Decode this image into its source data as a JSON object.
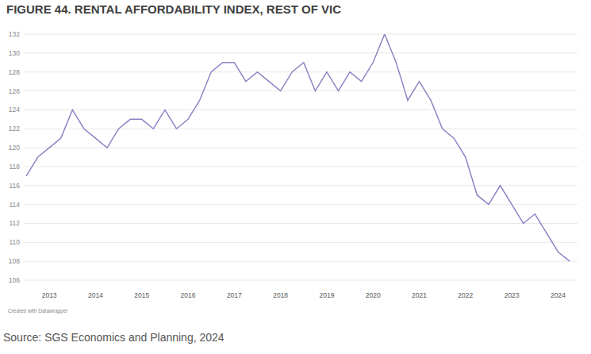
{
  "chart_data": {
    "type": "line",
    "title": "FIGURE 44. RENTAL AFFORDABILITY INDEX, REST OF VIC",
    "credit": "Created with Datawrapper",
    "source": "Source: SGS Economics and Planning, 2024",
    "categories": [
      null,
      null,
      "2013",
      null,
      null,
      null,
      "2014",
      null,
      null,
      null,
      "2015",
      null,
      null,
      null,
      "2016",
      null,
      null,
      null,
      "2017",
      null,
      null,
      null,
      "2018",
      null,
      null,
      null,
      "2019",
      null,
      null,
      null,
      "2020",
      null,
      null,
      null,
      "2021",
      null,
      null,
      null,
      "2022",
      null,
      null,
      null,
      "2023",
      null,
      null,
      null,
      "2024",
      null
    ],
    "values": [
      117,
      119,
      120,
      121,
      124,
      122,
      121,
      120,
      122,
      123,
      123,
      122,
      124,
      122,
      123,
      125,
      128,
      129,
      129,
      127,
      128,
      127,
      126,
      128,
      129,
      126,
      128,
      126,
      128,
      127,
      129,
      132,
      129,
      125,
      127,
      125,
      122,
      121,
      119,
      115,
      114,
      116,
      114,
      112,
      113,
      111,
      109,
      108
    ],
    "color": "#8e84c4",
    "ylim": [
      106,
      132
    ],
    "yticks": [
      106,
      108,
      110,
      112,
      114,
      116,
      118,
      120,
      122,
      124,
      126,
      128,
      130,
      132
    ],
    "grid": true
  }
}
